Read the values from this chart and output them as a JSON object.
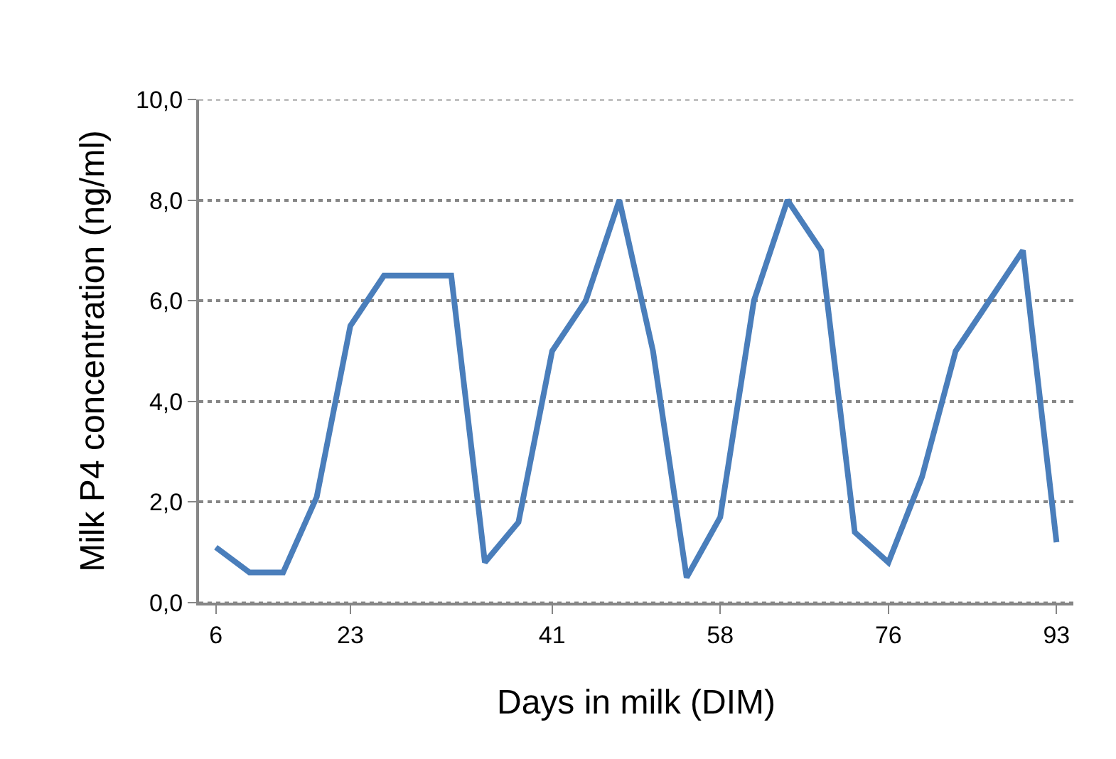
{
  "chart_data": {
    "type": "line",
    "xlabel": "Days in milk (DIM)",
    "ylabel": "Milk P4 concentration (ng/ml)",
    "categories": [
      "6",
      null,
      null,
      null,
      "23",
      null,
      null,
      null,
      null,
      null,
      "41",
      null,
      null,
      null,
      null,
      "58",
      null,
      null,
      null,
      null,
      "76",
      null,
      null,
      null,
      null,
      "93"
    ],
    "series": [
      {
        "color": "#4a7ebb",
        "values": [
          1.1,
          0.6,
          0.6,
          2.1,
          5.5,
          6.5,
          6.5,
          6.5,
          0.8,
          1.6,
          5.0,
          6.0,
          8.0,
          5.0,
          0.5,
          1.7,
          6.0,
          8.0,
          7.0,
          1.4,
          0.8,
          2.5,
          5.0,
          6.0,
          7.0,
          1.2
        ]
      }
    ],
    "ylim": [
      0,
      10
    ],
    "yticks": [
      {
        "value": 0,
        "label": "0,0"
      },
      {
        "value": 2,
        "label": "2,0"
      },
      {
        "value": 4,
        "label": "4,0"
      },
      {
        "value": 6,
        "label": "6,0"
      },
      {
        "value": 8,
        "label": "8,0"
      },
      {
        "value": 10,
        "label": "10,0"
      }
    ],
    "grid": "y",
    "marker": "none",
    "line_style": "solid"
  }
}
